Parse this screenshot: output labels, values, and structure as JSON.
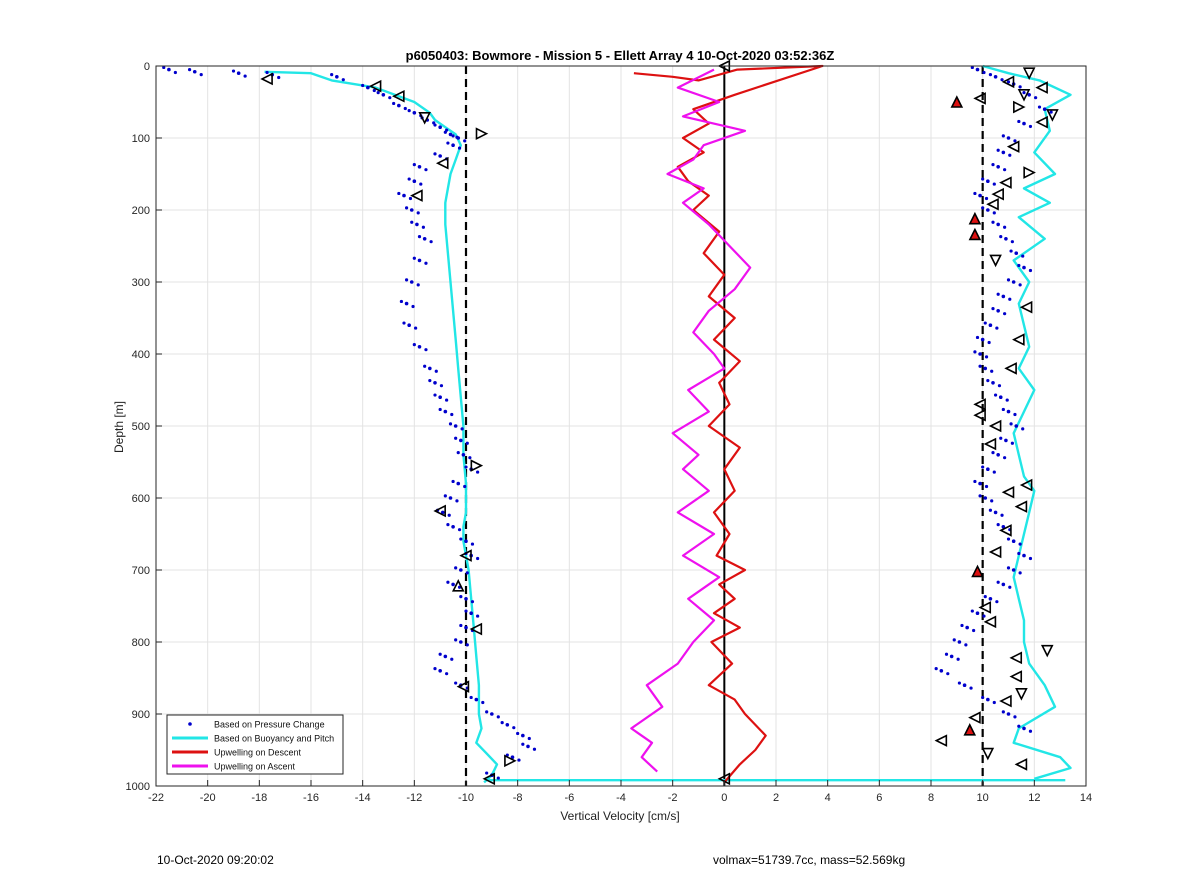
{
  "chart_data": {
    "type": "scatter",
    "title": "p6050403: Bowmore - Mission 5 - Ellett Array 4 10-Oct-2020 03:52:36Z",
    "xlabel": "Vertical Velocity [cm/s]",
    "ylabel": "Depth [m]",
    "xlim": [
      -22,
      14
    ],
    "ylim": [
      1000,
      0
    ],
    "y_reversed": true,
    "grid": true,
    "legend_position": "bottom-left",
    "xticks": [
      -22,
      -20,
      -18,
      -16,
      -14,
      -12,
      -10,
      -8,
      -6,
      -4,
      -2,
      0,
      2,
      4,
      6,
      8,
      10,
      12,
      14
    ],
    "yticks": [
      0,
      100,
      200,
      300,
      400,
      500,
      600,
      700,
      800,
      900,
      1000
    ],
    "reference_lines": [
      {
        "x": -10,
        "style": "dashed",
        "color": "#000000"
      },
      {
        "x": 10,
        "style": "dashed",
        "color": "#000000"
      },
      {
        "x": 0,
        "style": "solid",
        "color": "#000000"
      }
    ],
    "series": [
      {
        "name": "Based on Pressure Change",
        "kind": "points",
        "color": "#0000cc",
        "x": [
          -21.5,
          -20.5,
          -18.8,
          -17.5,
          -15,
          -13.8,
          -13.2,
          -12.6,
          -12,
          -11.5,
          -11,
          -10.6,
          -10.3,
          -10.5,
          -11,
          -11.8,
          -12,
          -12.4,
          -12.1,
          -11.9,
          -11.6,
          -11.8,
          -12.1,
          -12.3,
          -12.2,
          -11.8,
          -11.4,
          -11.2,
          -11,
          -10.8,
          -10.4,
          -10.2,
          -10.1,
          -9.8,
          -10.3,
          -10.6,
          -10.9,
          -10.5,
          -10,
          -9.8,
          -10.2,
          -10.5,
          -10,
          -9.8,
          -10,
          -10.2,
          -10.8,
          -11,
          -10.2,
          -9.6,
          -9,
          -8.4,
          -7.8,
          -7.6,
          -8.2,
          -9
        ],
        "y": [
          5,
          8,
          10,
          12,
          15,
          30,
          40,
          55,
          65,
          75,
          85,
          95,
          100,
          110,
          125,
          140,
          160,
          180,
          200,
          220,
          240,
          270,
          300,
          330,
          360,
          390,
          420,
          440,
          460,
          480,
          500,
          520,
          540,
          560,
          580,
          600,
          620,
          640,
          660,
          680,
          700,
          720,
          740,
          760,
          780,
          800,
          820,
          840,
          860,
          880,
          900,
          915,
          930,
          945,
          960,
          985
        ],
        "x2": [
          9.8,
          10.5,
          11.2,
          11.8,
          12.4,
          11.6,
          11,
          10.8,
          10.6,
          10.2,
          9.9,
          10.2,
          10.6,
          10.9,
          11.3,
          11.6,
          11.2,
          10.8,
          10.6,
          10.3,
          10,
          9.9,
          10.1,
          10.4,
          10.7,
          11,
          11.3,
          10.9,
          10.6,
          10.2,
          9.9,
          10.1,
          10.5,
          10.8,
          11.2,
          11.6,
          11.2,
          10.8,
          10.3,
          9.8,
          9.4,
          9.1,
          8.8,
          8.4,
          9.3,
          10.2,
          11,
          11.6
        ],
        "y2": [
          5,
          15,
          25,
          40,
          60,
          80,
          100,
          120,
          140,
          160,
          180,
          200,
          220,
          240,
          260,
          280,
          300,
          320,
          340,
          360,
          380,
          400,
          420,
          440,
          460,
          480,
          500,
          520,
          540,
          560,
          580,
          600,
          620,
          640,
          660,
          680,
          700,
          720,
          740,
          760,
          780,
          800,
          820,
          840,
          860,
          880,
          900,
          920
        ]
      },
      {
        "name": "Based on Buoyancy and Pitch",
        "kind": "line",
        "color": "#22e6e6",
        "segments": [
          {
            "x": [
              -17.8,
              -16,
              -15.2,
              -13.5,
              -12,
              -11.4,
              -11.2,
              -10.8,
              -10.4,
              -10.2,
              -10.4,
              -10.6,
              -10.7,
              -10.8,
              -10.8,
              -10.7,
              -10.6,
              -10.5,
              -10.4,
              -10.3,
              -10.2,
              -10.1,
              -10.1,
              -10,
              -10,
              -10.1,
              -10.1,
              -9.9,
              -9.8,
              -9.7,
              -9.6,
              -9.5,
              -9.5,
              -9.5,
              -9.4,
              -9.6,
              -9.2,
              -8.8,
              -9,
              -9.3
            ],
            "y": [
              8,
              10,
              20,
              30,
              50,
              65,
              75,
              85,
              95,
              110,
              130,
              150,
              170,
              190,
              220,
              260,
              300,
              340,
              380,
              420,
              460,
              500,
              540,
              580,
              620,
              640,
              660,
              700,
              740,
              780,
              820,
              860,
              880,
              900,
              920,
              940,
              955,
              970,
              985,
              995
            ]
          },
          {
            "x": [
              10,
              11,
              12.2,
              13.4,
              12.4,
              12.6,
              12,
              12.8,
              11.6,
              12.6,
              11.4,
              12.4,
              11.2,
              11.8,
              11.4,
              11.6,
              11.8,
              11.4,
              12,
              11.6,
              11.2,
              11.4,
              11.6,
              12,
              11.8,
              11.6,
              11.4,
              11.2,
              11.4,
              11.6,
              11.6,
              11.8,
              12.4,
              12.8,
              11.4,
              11.2,
              13,
              13.4,
              12
            ],
            "y": [
              0,
              10,
              20,
              40,
              60,
              90,
              120,
              150,
              170,
              190,
              210,
              240,
              270,
              300,
              330,
              360,
              390,
              420,
              450,
              480,
              510,
              540,
              570,
              590,
              620,
              650,
              680,
              710,
              740,
              770,
              800,
              830,
              860,
              890,
              920,
              940,
              960,
              975,
              990
            ]
          },
          {
            "x": [
              -9.2,
              -6,
              -3,
              0,
              3,
              6,
              9,
              12,
              13.2
            ],
            "y": [
              992,
              992,
              992,
              992,
              992,
              992,
              992,
              992,
              992
            ]
          }
        ]
      },
      {
        "name": "Upwelling on Descent",
        "kind": "line",
        "color": "#dd1111",
        "x": [
          -3.5,
          -2,
          -1,
          0.5,
          3.8,
          0.4,
          -1.2,
          -0.6,
          -1.6,
          -0.8,
          -1.8,
          -1.4,
          -0.6,
          -1.2,
          -0.2,
          -0.8,
          0,
          -0.6,
          0.4,
          -0.4,
          0.6,
          -0.2,
          0.2,
          -0.6,
          0.6,
          0,
          0.4,
          -0.4,
          0.2,
          -0.3,
          0.8,
          -0.2,
          0.4,
          -0.4,
          0.6,
          -0.5,
          0.3,
          -0.6,
          0.4,
          0.8,
          1.6,
          1.2,
          0.6,
          0
        ],
        "y": [
          10,
          15,
          20,
          5,
          0,
          40,
          60,
          80,
          100,
          120,
          140,
          160,
          180,
          200,
          230,
          260,
          290,
          320,
          350,
          380,
          410,
          440,
          470,
          500,
          530,
          560,
          590,
          620,
          650,
          680,
          700,
          720,
          740,
          760,
          780,
          800,
          830,
          860,
          880,
          900,
          930,
          950,
          970,
          995
        ]
      },
      {
        "name": "Upwelling on Ascent",
        "kind": "line",
        "color": "#ee11ee",
        "x": [
          -0.4,
          -1.8,
          -0.2,
          -1.6,
          0.8,
          -0.8,
          -1.2,
          -2.2,
          -0.8,
          -1.6,
          -0.6,
          0.2,
          1,
          0.4,
          -0.6,
          -1.2,
          -0.4,
          0,
          -1.4,
          -0.6,
          -2,
          -1,
          -1.6,
          -0.6,
          -1.8,
          -0.4,
          -1.6,
          -0.2,
          -1.4,
          -0.4,
          -1.2,
          -1.8,
          -3,
          -2.4,
          -3.6,
          -2.8,
          -3.2,
          -2.6
        ],
        "y": [
          5,
          30,
          50,
          70,
          90,
          110,
          130,
          150,
          170,
          190,
          220,
          250,
          280,
          310,
          340,
          370,
          400,
          420,
          450,
          480,
          510,
          540,
          560,
          590,
          620,
          650,
          680,
          710,
          740,
          770,
          800,
          830,
          860,
          890,
          920,
          940,
          960,
          980
        ]
      }
    ],
    "markers": [
      {
        "x": -17.7,
        "y": 18,
        "shape": "tri-left"
      },
      {
        "x": -13.5,
        "y": 28,
        "shape": "tri-left"
      },
      {
        "x": -12.6,
        "y": 42,
        "shape": "tri-left"
      },
      {
        "x": -11.6,
        "y": 72,
        "shape": "tri-down"
      },
      {
        "x": -9.4,
        "y": 94,
        "shape": "tri-right"
      },
      {
        "x": -10.9,
        "y": 135,
        "shape": "tri-left"
      },
      {
        "x": -11.9,
        "y": 180,
        "shape": "tri-left"
      },
      {
        "x": -9.6,
        "y": 555,
        "shape": "tri-right"
      },
      {
        "x": -11,
        "y": 618,
        "shape": "tri-left"
      },
      {
        "x": -10,
        "y": 680,
        "shape": "tri-left"
      },
      {
        "x": -10.3,
        "y": 722,
        "shape": "tri-up"
      },
      {
        "x": -9.6,
        "y": 782,
        "shape": "tri-left"
      },
      {
        "x": -10.1,
        "y": 862,
        "shape": "tri-left"
      },
      {
        "x": -8.3,
        "y": 965,
        "shape": "tri-right"
      },
      {
        "x": -9.1,
        "y": 990,
        "shape": "tri-left"
      },
      {
        "x": 0,
        "y": 0,
        "shape": "tri-left"
      },
      {
        "x": 0,
        "y": 990,
        "shape": "tri-left"
      },
      {
        "x": 11.8,
        "y": 10,
        "shape": "tri-down"
      },
      {
        "x": 11,
        "y": 22,
        "shape": "tri-left"
      },
      {
        "x": 12.3,
        "y": 30,
        "shape": "tri-left"
      },
      {
        "x": 11.6,
        "y": 40,
        "shape": "tri-down"
      },
      {
        "x": 9.9,
        "y": 45,
        "shape": "tri-left"
      },
      {
        "x": 9,
        "y": 50,
        "shape": "tri-up",
        "fill": "#dd1111"
      },
      {
        "x": 11.4,
        "y": 57,
        "shape": "tri-right"
      },
      {
        "x": 12.7,
        "y": 68,
        "shape": "tri-down"
      },
      {
        "x": 12.3,
        "y": 78,
        "shape": "tri-left"
      },
      {
        "x": 11.2,
        "y": 112,
        "shape": "tri-left"
      },
      {
        "x": 11.8,
        "y": 148,
        "shape": "tri-right"
      },
      {
        "x": 10.9,
        "y": 162,
        "shape": "tri-left"
      },
      {
        "x": 10.6,
        "y": 178,
        "shape": "tri-left"
      },
      {
        "x": 10.4,
        "y": 192,
        "shape": "tri-left"
      },
      {
        "x": 9.7,
        "y": 212,
        "shape": "tri-up",
        "fill": "#dd1111"
      },
      {
        "x": 9.7,
        "y": 234,
        "shape": "tri-up",
        "fill": "#dd1111"
      },
      {
        "x": 10.5,
        "y": 270,
        "shape": "tri-down"
      },
      {
        "x": 11.7,
        "y": 335,
        "shape": "tri-left"
      },
      {
        "x": 11.4,
        "y": 380,
        "shape": "tri-left"
      },
      {
        "x": 11.1,
        "y": 420,
        "shape": "tri-left"
      },
      {
        "x": 9.9,
        "y": 470,
        "shape": "tri-left"
      },
      {
        "x": 9.9,
        "y": 485,
        "shape": "tri-left"
      },
      {
        "x": 10.5,
        "y": 500,
        "shape": "tri-left"
      },
      {
        "x": 10.3,
        "y": 525,
        "shape": "tri-left"
      },
      {
        "x": 11.7,
        "y": 582,
        "shape": "tri-left"
      },
      {
        "x": 11,
        "y": 592,
        "shape": "tri-left"
      },
      {
        "x": 11.5,
        "y": 612,
        "shape": "tri-left"
      },
      {
        "x": 10.9,
        "y": 645,
        "shape": "tri-left"
      },
      {
        "x": 10.5,
        "y": 675,
        "shape": "tri-left"
      },
      {
        "x": 9.8,
        "y": 702,
        "shape": "tri-up",
        "fill": "#dd1111"
      },
      {
        "x": 10.1,
        "y": 752,
        "shape": "tri-left"
      },
      {
        "x": 10.3,
        "y": 772,
        "shape": "tri-left"
      },
      {
        "x": 12.5,
        "y": 812,
        "shape": "tri-down"
      },
      {
        "x": 11.3,
        "y": 822,
        "shape": "tri-left"
      },
      {
        "x": 11.3,
        "y": 848,
        "shape": "tri-left"
      },
      {
        "x": 11.5,
        "y": 872,
        "shape": "tri-down"
      },
      {
        "x": 10.9,
        "y": 882,
        "shape": "tri-left"
      },
      {
        "x": 9.7,
        "y": 905,
        "shape": "tri-left"
      },
      {
        "x": 9.5,
        "y": 922,
        "shape": "tri-up",
        "fill": "#dd1111"
      },
      {
        "x": 8.4,
        "y": 937,
        "shape": "tri-left"
      },
      {
        "x": 10.2,
        "y": 955,
        "shape": "tri-down"
      },
      {
        "x": 11.5,
        "y": 970,
        "shape": "tri-left"
      }
    ]
  },
  "footer": {
    "left": "10-Oct-2020 09:20:02",
    "right": "volmax=51739.7cc, mass=52.569kg"
  }
}
